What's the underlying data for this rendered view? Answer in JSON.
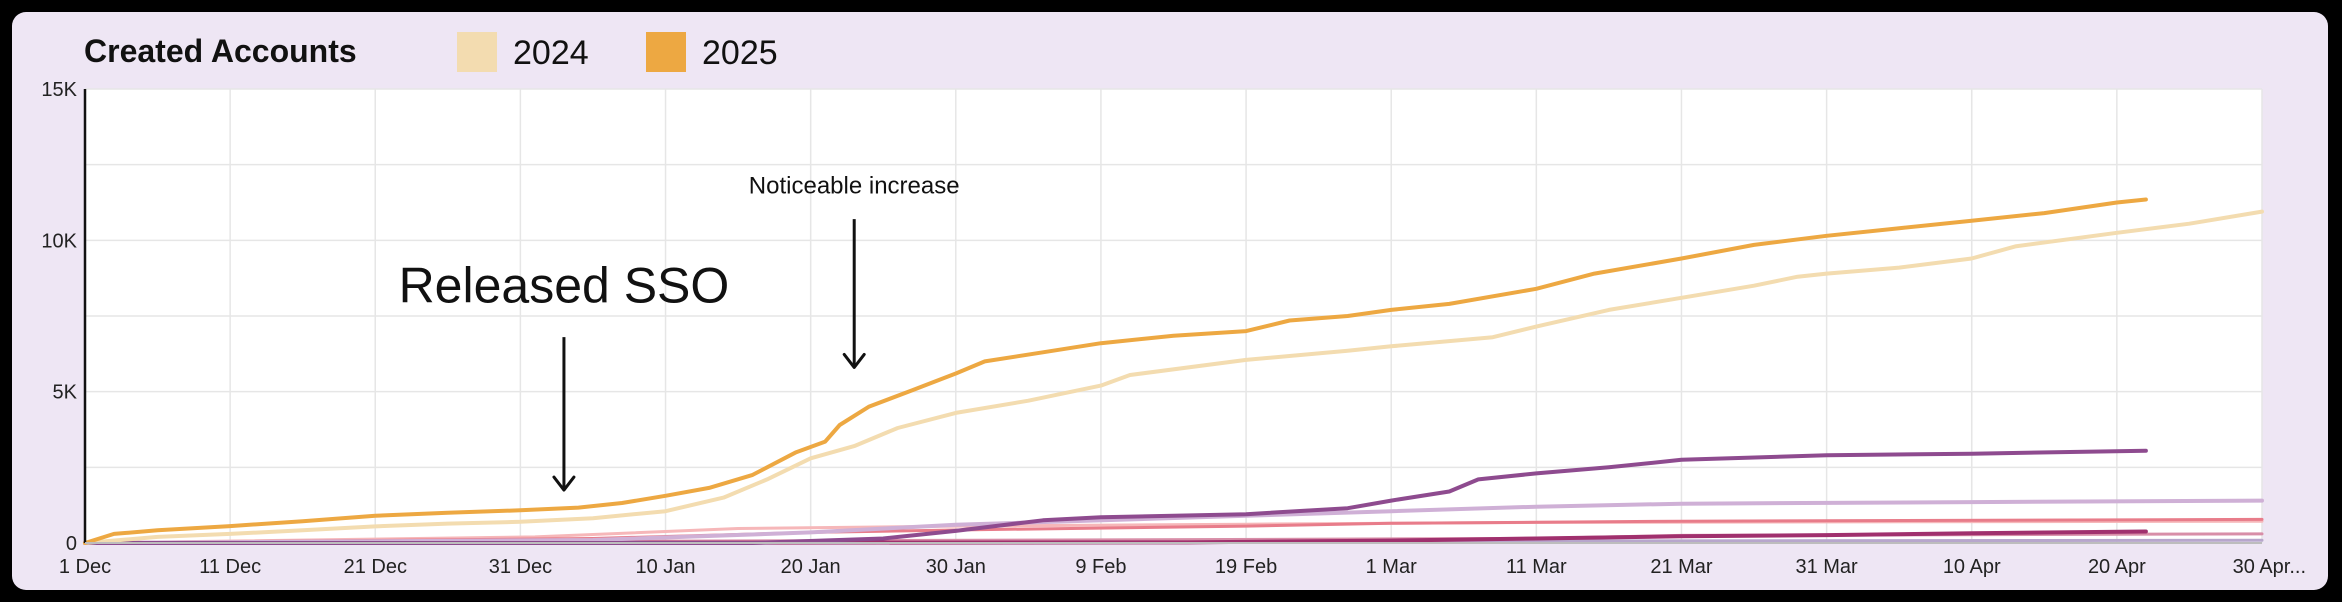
{
  "chart_data": {
    "type": "line",
    "title": "Created Accounts",
    "legend_placement": "top",
    "grid": true,
    "x_range": [
      "2024-12-01",
      "2025-04-30"
    ],
    "ylim": [
      0,
      15000
    ],
    "y_ticks": [
      {
        "value": 0,
        "label": "0"
      },
      {
        "value": 5000,
        "label": "5K"
      },
      {
        "value": 10000,
        "label": "10K"
      },
      {
        "value": 15000,
        "label": "15K"
      }
    ],
    "x_ticks": [
      {
        "date": "2024-12-01",
        "label": "1 Dec"
      },
      {
        "date": "2024-12-11",
        "label": "11 Dec"
      },
      {
        "date": "2024-12-21",
        "label": "21 Dec"
      },
      {
        "date": "2024-12-31",
        "label": "31 Dec"
      },
      {
        "date": "2025-01-10",
        "label": "10 Jan"
      },
      {
        "date": "2025-01-20",
        "label": "20 Jan"
      },
      {
        "date": "2025-01-30",
        "label": "30 Jan"
      },
      {
        "date": "2025-02-09",
        "label": "9 Feb"
      },
      {
        "date": "2025-02-19",
        "label": "19 Feb"
      },
      {
        "date": "2025-03-01",
        "label": "1 Mar"
      },
      {
        "date": "2025-03-11",
        "label": "11 Mar"
      },
      {
        "date": "2025-03-21",
        "label": "21 Mar"
      },
      {
        "date": "2025-03-31",
        "label": "31 Mar"
      },
      {
        "date": "2025-04-10",
        "label": "10 Apr"
      },
      {
        "date": "2025-04-20",
        "label": "20 Apr"
      },
      {
        "date": "2025-04-30",
        "label": "30 Apr..."
      }
    ],
    "legend": [
      {
        "label": "2024",
        "color": "#f3dcb0"
      },
      {
        "label": "2025",
        "color": "#eda842"
      }
    ],
    "series": [
      {
        "color": "#eda842",
        "width": 4,
        "points": [
          [
            "2024-12-01",
            0
          ],
          [
            "2024-12-03",
            300
          ],
          [
            "2024-12-06",
            420
          ],
          [
            "2024-12-11",
            560
          ],
          [
            "2024-12-16",
            720
          ],
          [
            "2024-12-21",
            900
          ],
          [
            "2024-12-26",
            1000
          ],
          [
            "2024-12-31",
            1080
          ],
          [
            "2025-01-04",
            1170
          ],
          [
            "2025-01-07",
            1320
          ],
          [
            "2025-01-10",
            1560
          ],
          [
            "2025-01-13",
            1820
          ],
          [
            "2025-01-16",
            2250
          ],
          [
            "2025-01-19",
            3000
          ],
          [
            "2025-01-21",
            3350
          ],
          [
            "2025-01-22",
            3900
          ],
          [
            "2025-01-24",
            4500
          ],
          [
            "2025-01-27",
            5050
          ],
          [
            "2025-01-30",
            5600
          ],
          [
            "2025-02-01",
            6000
          ],
          [
            "2025-02-05",
            6300
          ],
          [
            "2025-02-09",
            6600
          ],
          [
            "2025-02-14",
            6850
          ],
          [
            "2025-02-19",
            7000
          ],
          [
            "2025-02-22",
            7350
          ],
          [
            "2025-02-26",
            7500
          ],
          [
            "2025-03-01",
            7700
          ],
          [
            "2025-03-05",
            7900
          ],
          [
            "2025-03-11",
            8400
          ],
          [
            "2025-03-15",
            8900
          ],
          [
            "2025-03-21",
            9400
          ],
          [
            "2025-03-26",
            9850
          ],
          [
            "2025-03-31",
            10150
          ],
          [
            "2025-04-05",
            10400
          ],
          [
            "2025-04-10",
            10650
          ],
          [
            "2025-04-15",
            10900
          ],
          [
            "2025-04-20",
            11250
          ],
          [
            "2025-04-22",
            11350
          ]
        ]
      },
      {
        "color": "#f3dcb0",
        "width": 4,
        "points": [
          [
            "2024-12-01",
            0
          ],
          [
            "2024-12-06",
            200
          ],
          [
            "2024-12-11",
            300
          ],
          [
            "2024-12-16",
            420
          ],
          [
            "2024-12-21",
            550
          ],
          [
            "2024-12-26",
            640
          ],
          [
            "2024-12-31",
            700
          ],
          [
            "2025-01-05",
            820
          ],
          [
            "2025-01-10",
            1050
          ],
          [
            "2025-01-14",
            1500
          ],
          [
            "2025-01-17",
            2100
          ],
          [
            "2025-01-20",
            2800
          ],
          [
            "2025-01-23",
            3200
          ],
          [
            "2025-01-26",
            3800
          ],
          [
            "2025-01-30",
            4300
          ],
          [
            "2025-02-04",
            4700
          ],
          [
            "2025-02-09",
            5200
          ],
          [
            "2025-02-11",
            5550
          ],
          [
            "2025-02-19",
            6050
          ],
          [
            "2025-02-26",
            6350
          ],
          [
            "2025-03-01",
            6500
          ],
          [
            "2025-03-08",
            6800
          ],
          [
            "2025-03-11",
            7150
          ],
          [
            "2025-03-16",
            7700
          ],
          [
            "2025-03-21",
            8100
          ],
          [
            "2025-03-26",
            8500
          ],
          [
            "2025-03-29",
            8800
          ],
          [
            "2025-03-31",
            8900
          ],
          [
            "2025-04-05",
            9100
          ],
          [
            "2025-04-10",
            9400
          ],
          [
            "2025-04-13",
            9800
          ],
          [
            "2025-04-20",
            10250
          ],
          [
            "2025-04-25",
            10550
          ],
          [
            "2025-04-30",
            10950
          ]
        ]
      },
      {
        "color": "#8e4b8f",
        "width": 4,
        "points": [
          [
            "2024-12-01",
            0
          ],
          [
            "2025-01-16",
            0
          ],
          [
            "2025-01-25",
            150
          ],
          [
            "2025-01-30",
            400
          ],
          [
            "2025-02-05",
            750
          ],
          [
            "2025-02-09",
            850
          ],
          [
            "2025-02-19",
            950
          ],
          [
            "2025-02-26",
            1150
          ],
          [
            "2025-03-01",
            1400
          ],
          [
            "2025-03-05",
            1700
          ],
          [
            "2025-03-07",
            2100
          ],
          [
            "2025-03-11",
            2300
          ],
          [
            "2025-03-16",
            2500
          ],
          [
            "2025-03-21",
            2750
          ],
          [
            "2025-03-31",
            2900
          ],
          [
            "2025-04-10",
            2950
          ],
          [
            "2025-04-22",
            3050
          ]
        ]
      },
      {
        "color": "#cfb0d6",
        "width": 4,
        "points": [
          [
            "2024-12-01",
            0
          ],
          [
            "2025-01-05",
            100
          ],
          [
            "2025-01-20",
            350
          ],
          [
            "2025-01-30",
            600
          ],
          [
            "2025-02-19",
            900
          ],
          [
            "2025-03-01",
            1050
          ],
          [
            "2025-03-11",
            1200
          ],
          [
            "2025-03-21",
            1300
          ],
          [
            "2025-04-10",
            1350
          ],
          [
            "2025-04-30",
            1400
          ]
        ]
      },
      {
        "color": "#e87c8a",
        "width": 3,
        "points": [
          [
            "2024-12-01",
            0
          ],
          [
            "2025-01-05",
            150
          ],
          [
            "2025-01-20",
            350
          ],
          [
            "2025-01-30",
            430
          ],
          [
            "2025-02-19",
            560
          ],
          [
            "2025-03-01",
            650
          ],
          [
            "2025-03-21",
            720
          ],
          [
            "2025-04-30",
            780
          ]
        ]
      },
      {
        "color": "#f6b7b9",
        "width": 3,
        "points": [
          [
            "2024-12-01",
            0
          ],
          [
            "2025-01-01",
            200
          ],
          [
            "2025-01-15",
            480
          ],
          [
            "2025-01-30",
            560
          ],
          [
            "2025-02-19",
            620
          ],
          [
            "2025-03-11",
            680
          ],
          [
            "2025-04-30",
            720
          ]
        ]
      },
      {
        "color": "#a0306e",
        "width": 4,
        "points": [
          [
            "2024-12-01",
            0
          ],
          [
            "2025-02-15",
            20
          ],
          [
            "2025-03-01",
            80
          ],
          [
            "2025-03-11",
            150
          ],
          [
            "2025-03-21",
            220
          ],
          [
            "2025-03-31",
            260
          ],
          [
            "2025-04-10",
            320
          ],
          [
            "2025-04-22",
            380
          ]
        ]
      },
      {
        "color": "#d88ea8",
        "width": 3,
        "points": [
          [
            "2024-12-01",
            0
          ],
          [
            "2025-03-11",
            150
          ],
          [
            "2025-03-21",
            250
          ],
          [
            "2025-04-30",
            300
          ]
        ]
      },
      {
        "color": "#b7a6cc",
        "width": 3,
        "points": [
          [
            "2024-12-01",
            0
          ],
          [
            "2025-02-01",
            30
          ],
          [
            "2025-03-01",
            60
          ],
          [
            "2025-04-30",
            90
          ]
        ]
      }
    ],
    "annotations": [
      {
        "text": "Released SSO",
        "size": "large",
        "date": "2025-01-03",
        "y": 7950,
        "arrow_from_y": 6800,
        "arrow_to_y": 1750
      },
      {
        "text": "Noticeable increase",
        "size": "small",
        "date": "2025-01-23",
        "y": 11550,
        "arrow_from_y": 10700,
        "arrow_to_y": 5800
      }
    ]
  }
}
